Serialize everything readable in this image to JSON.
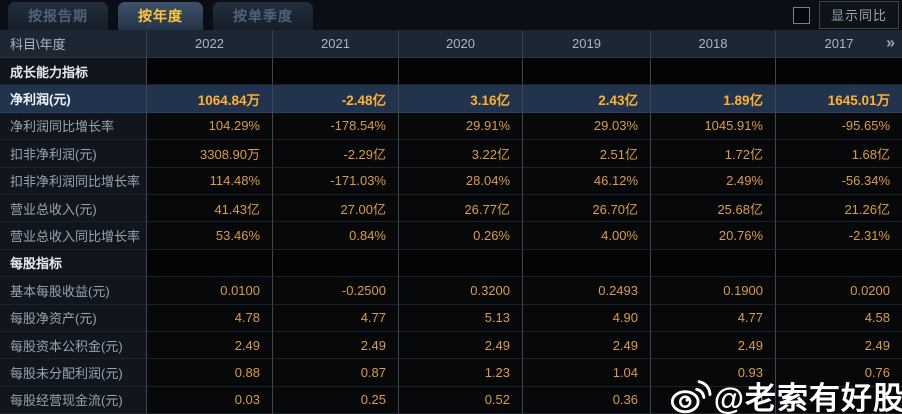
{
  "tabs": [
    {
      "label": "按报告期",
      "active": false
    },
    {
      "label": "按年度",
      "active": true
    },
    {
      "label": "按单季度",
      "active": false
    }
  ],
  "controls": {
    "compare_checkbox_checked": false,
    "compare_label": "显示同比"
  },
  "table": {
    "corner_label": "科目\\年度",
    "years": [
      "2022",
      "2021",
      "2020",
      "2019",
      "2018",
      "2017"
    ],
    "more_icon": "»",
    "rows": [
      {
        "type": "section",
        "label": "成长能力指标",
        "values": [
          "",
          "",
          "",
          "",
          "",
          ""
        ]
      },
      {
        "type": "data",
        "highlight": true,
        "label": "净利润(元)",
        "values": [
          "1064.84万",
          "-2.48亿",
          "3.16亿",
          "2.43亿",
          "1.89亿",
          "1645.01万"
        ]
      },
      {
        "type": "data",
        "highlight": false,
        "label": "净利润同比增长率",
        "values": [
          "104.29%",
          "-178.54%",
          "29.91%",
          "29.03%",
          "1045.91%",
          "-95.65%"
        ]
      },
      {
        "type": "data",
        "highlight": false,
        "label": "扣非净利润(元)",
        "values": [
          "3308.90万",
          "-2.29亿",
          "3.22亿",
          "2.51亿",
          "1.72亿",
          "1.68亿"
        ]
      },
      {
        "type": "data",
        "highlight": false,
        "label": "扣非净利润同比增长率",
        "values": [
          "114.48%",
          "-171.03%",
          "28.04%",
          "46.12%",
          "2.49%",
          "-56.34%"
        ]
      },
      {
        "type": "data",
        "highlight": false,
        "label": "营业总收入(元)",
        "values": [
          "41.43亿",
          "27.00亿",
          "26.77亿",
          "26.70亿",
          "25.68亿",
          "21.26亿"
        ]
      },
      {
        "type": "data",
        "highlight": false,
        "label": "营业总收入同比增长率",
        "values": [
          "53.46%",
          "0.84%",
          "0.26%",
          "4.00%",
          "20.76%",
          "-2.31%"
        ]
      },
      {
        "type": "section",
        "label": "每股指标",
        "values": [
          "",
          "",
          "",
          "",
          "",
          ""
        ]
      },
      {
        "type": "data",
        "highlight": false,
        "label": "基本每股收益(元)",
        "values": [
          "0.0100",
          "-0.2500",
          "0.3200",
          "0.2493",
          "0.1900",
          "0.0200"
        ]
      },
      {
        "type": "data",
        "highlight": false,
        "label": "每股净资产(元)",
        "values": [
          "4.78",
          "4.77",
          "5.13",
          "4.90",
          "4.77",
          "4.58"
        ]
      },
      {
        "type": "data",
        "highlight": false,
        "label": "每股资本公积金(元)",
        "values": [
          "2.49",
          "2.49",
          "2.49",
          "2.49",
          "2.49",
          "2.49"
        ]
      },
      {
        "type": "data",
        "highlight": false,
        "label": "每股未分配利润(元)",
        "values": [
          "0.88",
          "0.87",
          "1.23",
          "1.04",
          "0.93",
          "0.76"
        ]
      },
      {
        "type": "data",
        "highlight": false,
        "label": "每股经营现金流(元)",
        "values": [
          "0.03",
          "0.25",
          "0.52",
          "0.36",
          "0",
          ""
        ]
      }
    ]
  },
  "watermark": {
    "handle": "@老索有好股",
    "icon": "weibo-icon"
  },
  "colors": {
    "value_orange": "#dd9c42",
    "highlight_orange": "#ffb12f",
    "active_tab_yellow": "#fdc63a",
    "highlight_row_bg": "#22334e",
    "header_bg": "#1d2734",
    "label_bg": "#11161e",
    "value_bg": "#06080a"
  }
}
